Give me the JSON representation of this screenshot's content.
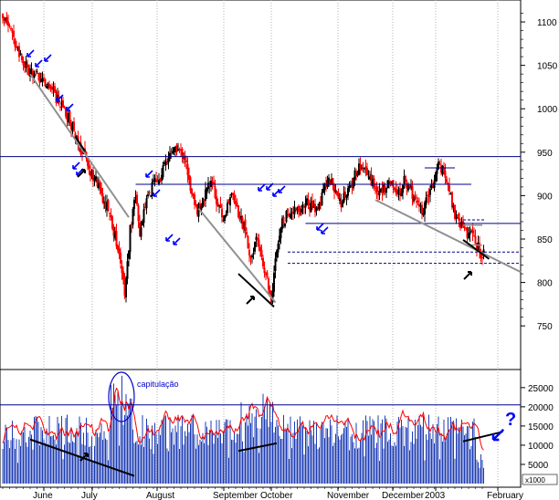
{
  "chart_data": [
    {
      "type": "candlestick",
      "panel": "price",
      "x_months": [
        "June",
        "July",
        "August",
        "September",
        "October",
        "November",
        "December",
        "2003",
        "February"
      ],
      "y_ticks": [
        750,
        800,
        850,
        900,
        950,
        1000,
        1050,
        1100
      ],
      "ylim": [
        705,
        1120
      ],
      "title": "",
      "xlabel": "",
      "ylabel": "",
      "colors": {
        "up": "#000000",
        "down": "#ff0000",
        "resistance": "#00008b",
        "trendline": "#909090",
        "arrow": "#0000ff"
      },
      "close_anchors": [
        [
          0,
          1105
        ],
        [
          5,
          1090
        ],
        [
          12,
          1065
        ],
        [
          20,
          1040
        ],
        [
          30,
          1035
        ],
        [
          40,
          1010
        ],
        [
          48,
          990
        ],
        [
          55,
          960
        ],
        [
          62,
          935
        ],
        [
          70,
          910
        ],
        [
          78,
          880
        ],
        [
          84,
          840
        ],
        [
          89,
          790
        ],
        [
          93,
          860
        ],
        [
          97,
          900
        ],
        [
          100,
          855
        ],
        [
          104,
          890
        ],
        [
          110,
          915
        ],
        [
          116,
          925
        ],
        [
          122,
          945
        ],
        [
          128,
          958
        ],
        [
          133,
          940
        ],
        [
          138,
          905
        ],
        [
          142,
          880
        ],
        [
          147,
          900
        ],
        [
          152,
          920
        ],
        [
          157,
          890
        ],
        [
          162,
          875
        ],
        [
          167,
          900
        ],
        [
          172,
          880
        ],
        [
          177,
          860
        ],
        [
          181,
          830
        ],
        [
          185,
          850
        ],
        [
          189,
          825
        ],
        [
          193,
          805
        ],
        [
          196,
          780
        ],
        [
          199,
          830
        ],
        [
          204,
          870
        ],
        [
          210,
          885
        ],
        [
          216,
          880
        ],
        [
          222,
          895
        ],
        [
          228,
          880
        ],
        [
          234,
          905
        ],
        [
          240,
          920
        ],
        [
          246,
          890
        ],
        [
          252,
          905
        ],
        [
          258,
          928
        ],
        [
          264,
          935
        ],
        [
          270,
          915
        ],
        [
          276,
          905
        ],
        [
          282,
          915
        ],
        [
          288,
          900
        ],
        [
          294,
          920
        ],
        [
          300,
          895
        ],
        [
          306,
          880
        ],
        [
          312,
          905
        ],
        [
          318,
          935
        ],
        [
          324,
          920
        ],
        [
          330,
          880
        ],
        [
          336,
          860
        ],
        [
          342,
          855
        ],
        [
          347,
          840
        ],
        [
          350,
          832
        ]
      ],
      "resistance_levels": [
        945,
        913,
        868,
        832,
        866,
        843
      ],
      "support_levels": [
        835,
        822
      ],
      "annotations": []
    },
    {
      "type": "bar+line",
      "panel": "volume",
      "y_ticks": [
        5000,
        10000,
        15000,
        20000,
        25000
      ],
      "ylim": [
        0,
        29000
      ],
      "axis_note": "x1000",
      "reference_level": 20500,
      "bar_color": "#1e3cb4",
      "line_color": "#ff0000",
      "annotations": [
        "capitulação",
        "?"
      ]
    }
  ]
}
